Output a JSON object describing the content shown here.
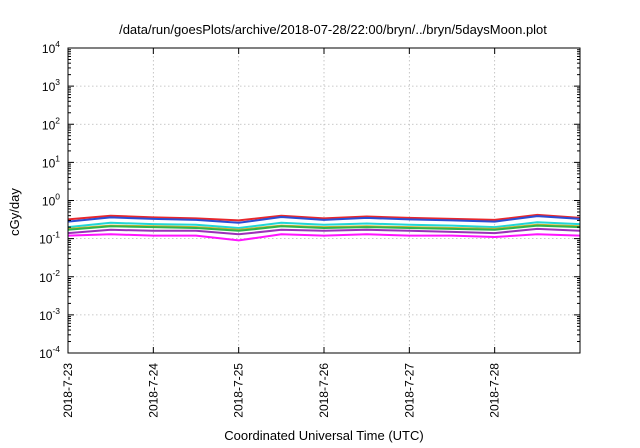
{
  "chart_data": {
    "type": "line",
    "title": "/data/run/goesPlots/archive/2018-07-28/22:00/bryn/../bryn/5daysMoon.plot",
    "xlabel": "Coordinated Universal Time (UTC)",
    "ylabel": "cGy/day",
    "yscale": "log",
    "ylim": [
      0.0001,
      10000
    ],
    "y_tick_bases": [
      "10",
      "10",
      "10",
      "10",
      "10",
      "10",
      "10",
      "10",
      "10"
    ],
    "y_tick_exponents": [
      "-4",
      "-3",
      "-2",
      "-1",
      "0",
      "1",
      "2",
      "3",
      "4"
    ],
    "xlim": [
      "2018-07-23",
      "2018-07-29"
    ],
    "x_tick_labels": [
      "2018-7-23",
      "2018-7-24",
      "2018-7-25",
      "2018-7-26",
      "2018-7-27",
      "2018-7-28"
    ],
    "x_tick_dates": [
      "2018-07-23",
      "2018-07-24",
      "2018-07-25",
      "2018-07-26",
      "2018-07-27",
      "2018-07-28"
    ],
    "grid": true,
    "x_dates": [
      "2018-07-23",
      "2018-07-23T12:00",
      "2018-07-24",
      "2018-07-24T12:00",
      "2018-07-25",
      "2018-07-25T12:00",
      "2018-07-26",
      "2018-07-26T12:00",
      "2018-07-27",
      "2018-07-27T12:00",
      "2018-07-28",
      "2018-07-28T12:00",
      "2018-07-29"
    ],
    "series": [
      {
        "color": "#e8272c",
        "values": [
          0.32,
          0.4,
          0.36,
          0.34,
          0.3,
          0.4,
          0.34,
          0.38,
          0.35,
          0.33,
          0.31,
          0.42,
          0.35
        ]
      },
      {
        "color": "#2a4dd6",
        "values": [
          0.28,
          0.36,
          0.33,
          0.31,
          0.26,
          0.37,
          0.31,
          0.35,
          0.32,
          0.3,
          0.28,
          0.39,
          0.33
        ]
      },
      {
        "color": "#21d6d6",
        "values": [
          0.2,
          0.26,
          0.24,
          0.23,
          0.19,
          0.26,
          0.23,
          0.25,
          0.23,
          0.22,
          0.2,
          0.27,
          0.24
        ]
      },
      {
        "color": "#d4b22e",
        "values": [
          0.18,
          0.22,
          0.21,
          0.2,
          0.17,
          0.22,
          0.2,
          0.21,
          0.2,
          0.19,
          0.18,
          0.23,
          0.21
        ]
      },
      {
        "color": "#2fb34a",
        "values": [
          0.17,
          0.21,
          0.2,
          0.19,
          0.16,
          0.21,
          0.19,
          0.2,
          0.19,
          0.18,
          0.17,
          0.22,
          0.2
        ]
      },
      {
        "color": "#9b30b8",
        "values": [
          0.14,
          0.17,
          0.16,
          0.16,
          0.13,
          0.17,
          0.16,
          0.17,
          0.16,
          0.15,
          0.14,
          0.18,
          0.16
        ]
      },
      {
        "color": "#ff14ff",
        "values": [
          0.12,
          0.13,
          0.12,
          0.12,
          0.09,
          0.13,
          0.12,
          0.13,
          0.12,
          0.12,
          0.11,
          0.13,
          0.12
        ]
      }
    ]
  }
}
